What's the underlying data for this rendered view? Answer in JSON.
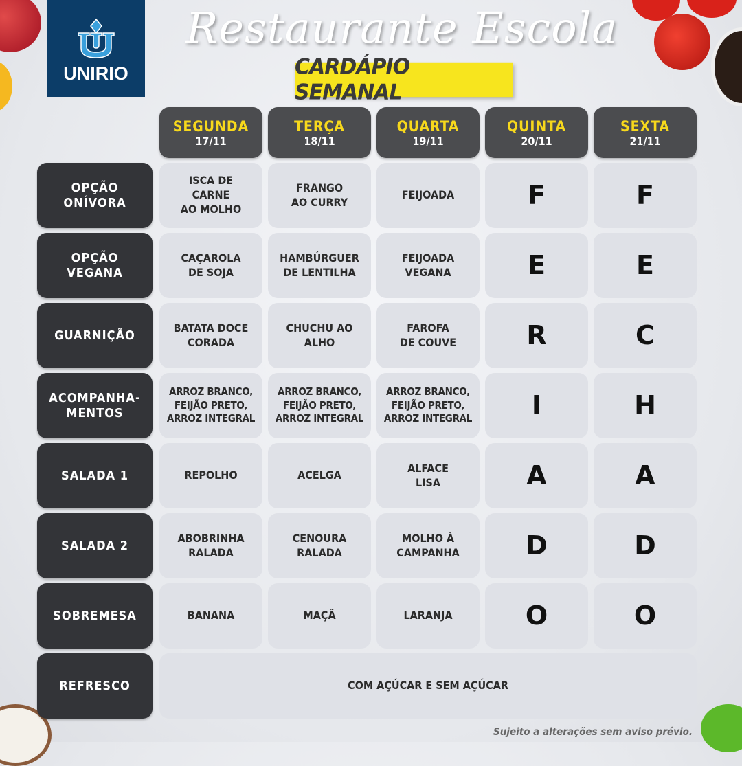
{
  "logo": {
    "text": "UNIRIO"
  },
  "header": {
    "title": "Restaurante Escola",
    "subtitle": "CARDÁPIO SEMANAL"
  },
  "days": [
    {
      "name": "SEGUNDA",
      "date": "17/11"
    },
    {
      "name": "TERÇA",
      "date": "18/11"
    },
    {
      "name": "QUARTA",
      "date": "19/11"
    },
    {
      "name": "QUINTA",
      "date": "20/11"
    },
    {
      "name": "SEXTA",
      "date": "21/11"
    }
  ],
  "rows": [
    {
      "label": "OPÇÃO\nONÍVORA",
      "cells": [
        "ISCA DE\nCARNE\nAO MOLHO",
        "FRANGO\nAO CURRY",
        "FEIJOADA",
        "F",
        "F"
      ]
    },
    {
      "label": "OPÇÃO\nVEGANA",
      "cells": [
        "CAÇAROLA\nDE SOJA",
        "HAMBÚRGUER\nDE LENTILHA",
        "FEIJOADA\nVEGANA",
        "E",
        "E"
      ]
    },
    {
      "label": "GUARNIÇÃO",
      "cells": [
        "BATATA DOCE\nCORADA",
        "CHUCHU AO\nALHO",
        "FAROFA\nDE COUVE",
        "R",
        "C"
      ]
    },
    {
      "label": "ACOMPANHA-\nMENTOS",
      "cells": [
        "ARROZ BRANCO,\nFEIJÃO PRETO,\nARROZ INTEGRAL",
        "ARROZ BRANCO,\nFEIJÃO PRETO,\nARROZ INTEGRAL",
        "ARROZ BRANCO,\nFEIJÃO PRETO,\nARROZ INTEGRAL",
        "I",
        "H"
      ]
    },
    {
      "label": "SALADA 1",
      "cells": [
        "REPOLHO",
        "ACELGA",
        "ALFACE\nLISA",
        "A",
        "A"
      ]
    },
    {
      "label": "SALADA 2",
      "cells": [
        "ABOBRINHA\nRALADA",
        "CENOURA\nRALADA",
        "MOLHO À\nCAMPANHA",
        "D",
        "D"
      ]
    },
    {
      "label": "SOBREMESA",
      "cells": [
        "BANANA",
        "MAÇÃ",
        "LARANJA",
        "O",
        "O"
      ]
    }
  ],
  "refresco": {
    "label": "REFRESCO",
    "value": "COM AÇÚCAR E SEM AÇÚCAR"
  },
  "footer": {
    "note": "Sujeito a alterações sem aviso prévio."
  },
  "colors": {
    "logo_bg": "#0c3d68",
    "subtitle_bg": "#f7e51e",
    "day_header_bg": "#4b4c4f",
    "day_name": "#f7d81c",
    "row_label_bg": "#333438",
    "cell_bg": "#dfe1e7"
  }
}
